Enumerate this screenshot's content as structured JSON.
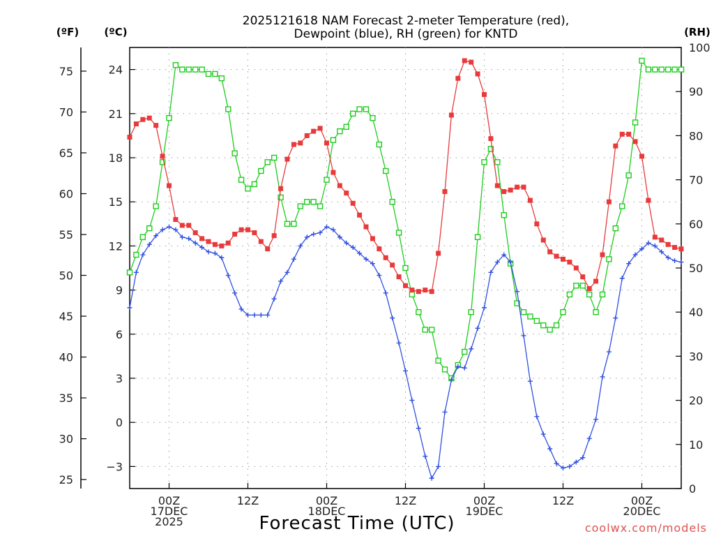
{
  "chart_data": {
    "type": "line",
    "title_line1": "2025121618 NAM Forecast 2-meter Temperature (red),",
    "title_line2": "Dewpoint (blue), RH (green) for KNTD",
    "units": {
      "f": "(ºF)",
      "c": "(ºC)",
      "rh": "(RH)"
    },
    "xlabel": "Forecast Time (UTC)",
    "credit": "coolwx.com/models",
    "x_hours_since_start": [
      0,
      1,
      2,
      3,
      4,
      5,
      6,
      7,
      8,
      9,
      10,
      11,
      12,
      13,
      14,
      15,
      16,
      17,
      18,
      19,
      20,
      21,
      22,
      23,
      24,
      25,
      26,
      27,
      28,
      29,
      30,
      31,
      32,
      33,
      34,
      35,
      36,
      37,
      38,
      39,
      40,
      41,
      42,
      43,
      44,
      45,
      46,
      47,
      48,
      49,
      50,
      51,
      52,
      53,
      54,
      55,
      56,
      57,
      58,
      59,
      60,
      61,
      62,
      63,
      64,
      65,
      66,
      67,
      68,
      69,
      70,
      71,
      72,
      73,
      74,
      75,
      76,
      77,
      78,
      79,
      80,
      81,
      82,
      83,
      84
    ],
    "xlim": [
      0,
      84
    ],
    "x_ticks": [
      {
        "hour": 6,
        "lines": [
          "00Z",
          "17DEC",
          "2025"
        ]
      },
      {
        "hour": 18,
        "lines": [
          "12Z"
        ]
      },
      {
        "hour": 30,
        "lines": [
          "00Z",
          "18DEC"
        ]
      },
      {
        "hour": 42,
        "lines": [
          "12Z"
        ]
      },
      {
        "hour": 54,
        "lines": [
          "00Z",
          "19DEC"
        ]
      },
      {
        "hour": 66,
        "lines": [
          "12Z"
        ]
      },
      {
        "hour": 78,
        "lines": [
          "00Z",
          "20DEC"
        ]
      }
    ],
    "celsius_axis": {
      "ylim": [
        -4.5,
        25.5
      ],
      "ticks": [
        -3,
        0,
        3,
        6,
        9,
        12,
        15,
        18,
        21,
        24
      ]
    },
    "fahrenheit_ticks": [
      25,
      30,
      35,
      40,
      45,
      50,
      55,
      60,
      65,
      70,
      75
    ],
    "rh_axis": {
      "ylim": [
        0,
        100
      ],
      "ticks": [
        0,
        10,
        20,
        30,
        40,
        50,
        60,
        70,
        80,
        90,
        100
      ]
    },
    "series": [
      {
        "name": "2-meter Temperature",
        "unit": "C",
        "color": "#e83a3a",
        "marker": "filled-square",
        "values": [
          19.4,
          20.3,
          20.6,
          20.7,
          20.2,
          18.1,
          16.1,
          13.8,
          13.4,
          13.4,
          12.9,
          12.5,
          12.3,
          12.1,
          12.0,
          12.2,
          12.8,
          13.1,
          13.1,
          12.9,
          12.3,
          11.8,
          12.7,
          15.9,
          17.9,
          18.9,
          19.0,
          19.5,
          19.8,
          20.0,
          19.0,
          17.0,
          16.1,
          15.6,
          14.9,
          14.1,
          13.3,
          12.5,
          11.8,
          11.2,
          10.7,
          9.9,
          9.3,
          9.0,
          8.9,
          9.0,
          8.9,
          11.5,
          15.7,
          20.9,
          23.4,
          24.6,
          24.5,
          23.7,
          22.3,
          19.3,
          16.1,
          15.7,
          15.8,
          16.0,
          16.0,
          15.1,
          13.5,
          12.4,
          11.6,
          11.3,
          11.1,
          10.9,
          10.5,
          9.9,
          9.1,
          9.6,
          11.4,
          15.0,
          18.8,
          19.6,
          19.6,
          19.1,
          18.1,
          15.1,
          12.6,
          12.4,
          12.1,
          11.9,
          11.8
        ]
      },
      {
        "name": "Dewpoint",
        "unit": "C",
        "color": "#2f4fe0",
        "marker": "plus",
        "values": [
          7.8,
          10.2,
          11.4,
          12.1,
          12.7,
          13.1,
          13.3,
          13.1,
          12.6,
          12.5,
          12.2,
          11.9,
          11.6,
          11.5,
          11.2,
          10.0,
          8.8,
          7.7,
          7.3,
          7.3,
          7.3,
          7.3,
          8.4,
          9.6,
          10.2,
          11.1,
          12.0,
          12.6,
          12.8,
          12.9,
          13.3,
          13.1,
          12.6,
          12.2,
          11.9,
          11.5,
          11.1,
          10.8,
          10.0,
          8.8,
          7.1,
          5.4,
          3.5,
          1.5,
          -0.4,
          -2.3,
          -3.8,
          -3.0,
          0.7,
          2.9,
          3.8,
          3.7,
          5.0,
          6.4,
          7.8,
          10.2,
          10.9,
          11.4,
          10.9,
          8.9,
          5.9,
          2.8,
          0.4,
          -0.8,
          -1.8,
          -2.8,
          -3.1,
          -3.0,
          -2.7,
          -2.4,
          -1.1,
          0.2,
          3.1,
          4.8,
          7.1,
          9.8,
          10.8,
          11.4,
          11.8,
          12.2,
          12.0,
          11.6,
          11.2,
          11.0,
          10.9
        ]
      },
      {
        "name": "RH",
        "unit": "%",
        "color": "#1ccc1c",
        "marker": "open-square",
        "values": [
          49,
          53,
          57,
          59,
          64,
          74,
          84,
          96,
          95,
          95,
          95,
          95,
          94,
          94,
          93,
          86,
          76,
          70,
          68,
          69,
          72,
          74,
          75,
          66,
          60,
          60,
          64,
          65,
          65,
          64,
          70,
          79,
          81,
          82,
          85,
          86,
          86,
          84,
          78,
          72,
          65,
          58,
          50,
          44,
          40,
          36,
          36,
          29,
          27,
          25,
          28,
          31,
          40,
          57,
          74,
          77,
          74,
          62,
          51,
          42,
          40,
          39,
          38,
          37,
          36,
          37,
          40,
          44,
          46,
          46,
          44,
          40,
          44,
          52,
          59,
          64,
          71,
          83,
          97,
          95,
          95,
          95,
          95,
          95,
          95
        ]
      }
    ]
  }
}
